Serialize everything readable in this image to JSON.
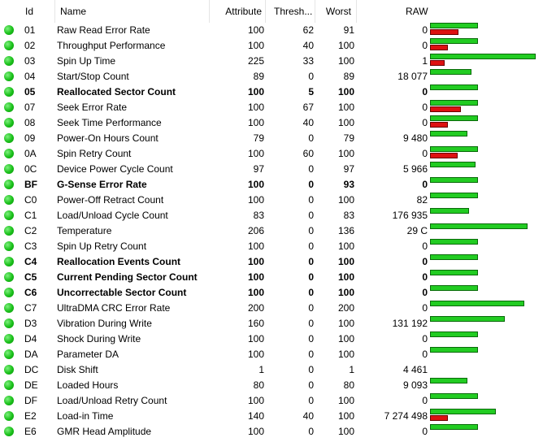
{
  "columns": {
    "id": "Id",
    "name": "Name",
    "attribute": "Attribute",
    "threshold": "Thresh...",
    "worst": "Worst",
    "raw": "RAW"
  },
  "colors": {
    "status_ok": "#19c019",
    "bar_green": "#22cc22",
    "bar_red": "#dd1111"
  },
  "rows": [
    {
      "id": "01",
      "name": "Raw Read Error Rate",
      "attr": "100",
      "thr": "62",
      "worst": "91",
      "raw": "0",
      "bold": false,
      "level": 0.45,
      "red": 0.27
    },
    {
      "id": "02",
      "name": "Throughput Performance",
      "attr": "100",
      "thr": "40",
      "worst": "100",
      "raw": "0",
      "bold": false,
      "level": 0.45,
      "red": 0.17
    },
    {
      "id": "03",
      "name": "Spin Up Time",
      "attr": "225",
      "thr": "33",
      "worst": "100",
      "raw": "1",
      "bold": false,
      "level": 1.0,
      "red": 0.14
    },
    {
      "id": "04",
      "name": "Start/Stop Count",
      "attr": "89",
      "thr": "0",
      "worst": "89",
      "raw": "18 077",
      "bold": false,
      "level": 0.39,
      "red": 0
    },
    {
      "id": "05",
      "name": "Reallocated Sector Count",
      "attr": "100",
      "thr": "5",
      "worst": "100",
      "raw": "0",
      "bold": true,
      "level": 0.45,
      "red": 0
    },
    {
      "id": "07",
      "name": "Seek Error Rate",
      "attr": "100",
      "thr": "67",
      "worst": "100",
      "raw": "0",
      "bold": false,
      "level": 0.45,
      "red": 0.29
    },
    {
      "id": "08",
      "name": "Seek Time Performance",
      "attr": "100",
      "thr": "40",
      "worst": "100",
      "raw": "0",
      "bold": false,
      "level": 0.45,
      "red": 0.17
    },
    {
      "id": "09",
      "name": "Power-On Hours Count",
      "attr": "79",
      "thr": "0",
      "worst": "79",
      "raw": "9 480",
      "bold": false,
      "level": 0.35,
      "red": 0
    },
    {
      "id": "0A",
      "name": "Spin Retry Count",
      "attr": "100",
      "thr": "60",
      "worst": "100",
      "raw": "0",
      "bold": false,
      "level": 0.45,
      "red": 0.26
    },
    {
      "id": "0C",
      "name": "Device Power Cycle Count",
      "attr": "97",
      "thr": "0",
      "worst": "97",
      "raw": "5 966",
      "bold": false,
      "level": 0.43,
      "red": 0
    },
    {
      "id": "BF",
      "name": "G-Sense Error Rate",
      "attr": "100",
      "thr": "0",
      "worst": "93",
      "raw": "0",
      "bold": true,
      "level": 0.45,
      "red": 0
    },
    {
      "id": "C0",
      "name": "Power-Off Retract Count",
      "attr": "100",
      "thr": "0",
      "worst": "100",
      "raw": "82",
      "bold": false,
      "level": 0.45,
      "red": 0
    },
    {
      "id": "C1",
      "name": "Load/Unload Cycle Count",
      "attr": "83",
      "thr": "0",
      "worst": "83",
      "raw": "176 935",
      "bold": false,
      "level": 0.37,
      "red": 0
    },
    {
      "id": "C2",
      "name": "Temperature",
      "attr": "206",
      "thr": "0",
      "worst": "136",
      "raw": "29 C",
      "bold": false,
      "level": 0.92,
      "red": 0
    },
    {
      "id": "C3",
      "name": "Spin Up Retry Count",
      "attr": "100",
      "thr": "0",
      "worst": "100",
      "raw": "0",
      "bold": false,
      "level": 0.45,
      "red": 0
    },
    {
      "id": "C4",
      "name": "Reallocation Events Count",
      "attr": "100",
      "thr": "0",
      "worst": "100",
      "raw": "0",
      "bold": true,
      "level": 0.45,
      "red": 0
    },
    {
      "id": "C5",
      "name": "Current Pending Sector Count",
      "attr": "100",
      "thr": "0",
      "worst": "100",
      "raw": "0",
      "bold": true,
      "level": 0.45,
      "red": 0
    },
    {
      "id": "C6",
      "name": "Uncorrectable Sector Count",
      "attr": "100",
      "thr": "0",
      "worst": "100",
      "raw": "0",
      "bold": true,
      "level": 0.45,
      "red": 0
    },
    {
      "id": "C7",
      "name": "UltraDMA CRC Error Rate",
      "attr": "200",
      "thr": "0",
      "worst": "200",
      "raw": "0",
      "bold": false,
      "level": 0.89,
      "red": 0
    },
    {
      "id": "D3",
      "name": "Vibration During Write",
      "attr": "160",
      "thr": "0",
      "worst": "100",
      "raw": "131 192",
      "bold": false,
      "level": 0.71,
      "red": 0
    },
    {
      "id": "D4",
      "name": "Shock During Write",
      "attr": "100",
      "thr": "0",
      "worst": "100",
      "raw": "0",
      "bold": false,
      "level": 0.45,
      "red": 0
    },
    {
      "id": "DA",
      "name": "Parameter DA",
      "attr": "100",
      "thr": "0",
      "worst": "100",
      "raw": "0",
      "bold": false,
      "level": 0.45,
      "red": 0
    },
    {
      "id": "DC",
      "name": "Disk Shift",
      "attr": "1",
      "thr": "0",
      "worst": "1",
      "raw": "4 461",
      "bold": false,
      "level": 0,
      "red": 0
    },
    {
      "id": "DE",
      "name": "Loaded Hours",
      "attr": "80",
      "thr": "0",
      "worst": "80",
      "raw": "9 093",
      "bold": false,
      "level": 0.35,
      "red": 0
    },
    {
      "id": "DF",
      "name": "Load/Unload Retry Count",
      "attr": "100",
      "thr": "0",
      "worst": "100",
      "raw": "0",
      "bold": false,
      "level": 0.45,
      "red": 0
    },
    {
      "id": "E2",
      "name": "Load-in Time",
      "attr": "140",
      "thr": "40",
      "worst": "100",
      "raw": "7 274 498",
      "bold": false,
      "level": 0.62,
      "red": 0.17
    },
    {
      "id": "E6",
      "name": "GMR Head Amplitude",
      "attr": "100",
      "thr": "0",
      "worst": "100",
      "raw": "0",
      "bold": false,
      "level": 0.45,
      "red": 0
    }
  ]
}
